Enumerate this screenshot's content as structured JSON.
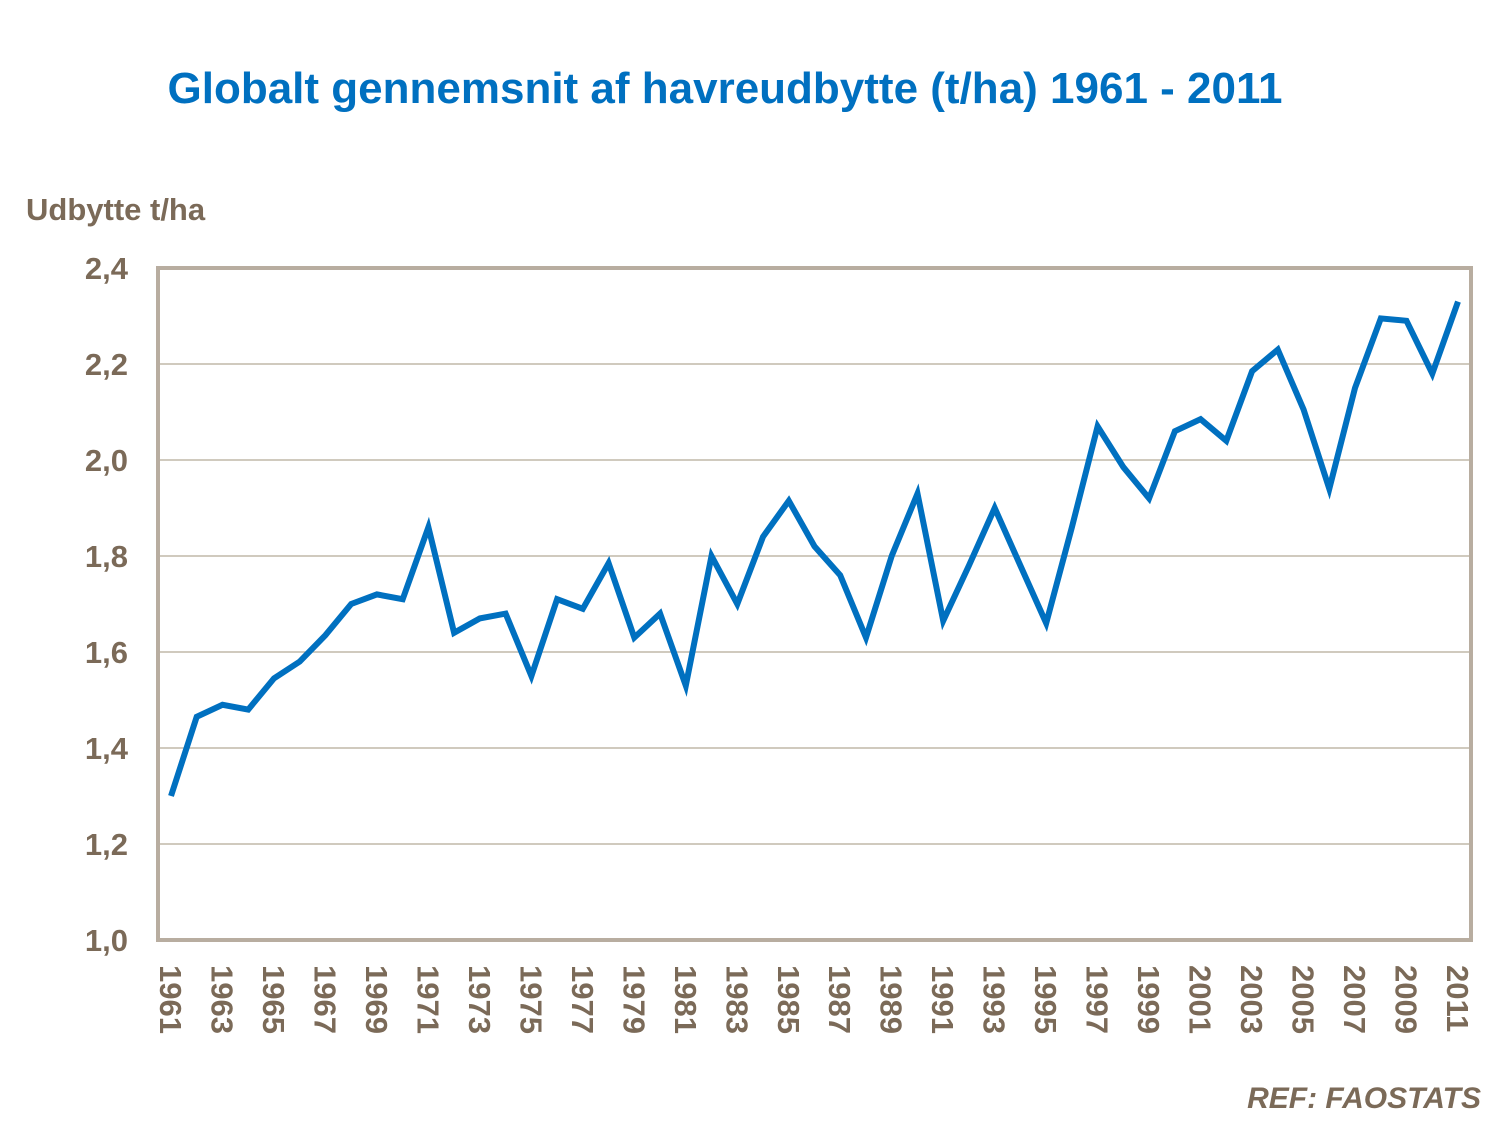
{
  "chart_data": {
    "type": "line",
    "title": "Globalt gennemsnit af havreudbytte (t/ha) 1961 - 2011",
    "ylabel": "Udbytte t/ha",
    "xlabel": "",
    "ylim": [
      1.0,
      2.4
    ],
    "yticks": [
      "1,0",
      "1,2",
      "1,4",
      "1,6",
      "1,8",
      "2,0",
      "2,2",
      "2,4"
    ],
    "ytick_values": [
      1.0,
      1.2,
      1.4,
      1.6,
      1.8,
      2.0,
      2.2,
      2.4
    ],
    "grid": true,
    "line_color": "#0070c0",
    "text_color": "#7b6a58",
    "x": [
      1961,
      1962,
      1963,
      1964,
      1965,
      1966,
      1967,
      1968,
      1969,
      1970,
      1971,
      1972,
      1973,
      1974,
      1975,
      1976,
      1977,
      1978,
      1979,
      1980,
      1981,
      1982,
      1983,
      1984,
      1985,
      1986,
      1987,
      1988,
      1989,
      1990,
      1991,
      1992,
      1993,
      1994,
      1995,
      1996,
      1997,
      1998,
      1999,
      2000,
      2001,
      2002,
      2003,
      2004,
      2005,
      2006,
      2007,
      2008,
      2009,
      2010,
      2011
    ],
    "values": [
      1.3,
      1.465,
      1.49,
      1.48,
      1.545,
      1.58,
      1.635,
      1.7,
      1.72,
      1.71,
      1.86,
      1.64,
      1.67,
      1.68,
      1.55,
      1.71,
      1.69,
      1.785,
      1.63,
      1.68,
      1.53,
      1.8,
      1.7,
      1.84,
      1.915,
      1.82,
      1.76,
      1.63,
      1.8,
      1.93,
      1.665,
      1.78,
      1.9,
      1.78,
      1.66,
      1.86,
      2.07,
      1.985,
      1.92,
      2.06,
      2.085,
      2.04,
      2.185,
      2.23,
      2.105,
      1.94,
      2.15,
      2.295,
      2.29,
      2.18,
      2.33
    ],
    "xtick_labels": [
      "1961",
      "1963",
      "1965",
      "1967",
      "1969",
      "1971",
      "1973",
      "1975",
      "1977",
      "1979",
      "1981",
      "1983",
      "1985",
      "1987",
      "1989",
      "1991",
      "1993",
      "1995",
      "1997",
      "1999",
      "2001",
      "2003",
      "2005",
      "2007",
      "2009",
      "2011"
    ]
  },
  "source": "REF: FAOSTATS"
}
